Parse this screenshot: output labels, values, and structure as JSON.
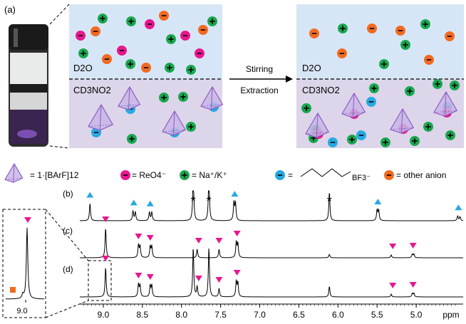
{
  "panel_labels": {
    "a": "(a)",
    "b": "(b)",
    "c": "(c)",
    "d": "(d)"
  },
  "boxes": {
    "left": {
      "top_label": "D2O",
      "bottom_label": "CD3NO2"
    },
    "right": {
      "top_label": "D2O",
      "bottom_label": "CD3NO2"
    }
  },
  "arrow": {
    "top_label": "Stirring",
    "bottom_label": "Extraction"
  },
  "legend": {
    "cage": "= 1·[BArF]12",
    "rheo4": "= ReO4⁻",
    "cation": "= Na⁺/K⁺",
    "borate_eq": "=",
    "borate": "BF3⁻",
    "other": "= other anion"
  },
  "colors": {
    "top_phase": "#d7e6f6",
    "bottom_phase": "#ddd5ea",
    "rheo4": "#e8178f",
    "cation": "#1aa750",
    "borate": "#27a9e1",
    "other": "#f26a21",
    "cage": "#8a5cc4"
  },
  "chart_data": {
    "type": "line",
    "title": "",
    "xlabel": "ppm",
    "ylabel": "",
    "xlim": [
      9.3,
      4.4
    ],
    "ticks": [
      9.0,
      8.5,
      8.0,
      7.5,
      7.0,
      6.5,
      6.0,
      5.5,
      5.0
    ],
    "tick_labels": [
      "9.0",
      "8.5",
      "8.0",
      "7.5",
      "7.0",
      "6.5",
      "6.0",
      "5.5",
      "5.0"
    ],
    "grid": false,
    "series": [
      {
        "name": "(b)",
        "peaks": [
          {
            "x": 9.17,
            "h": 0.36
          },
          {
            "x": 8.62,
            "h": 0.2
          },
          {
            "x": 8.59,
            "h": 0.18
          },
          {
            "x": 8.41,
            "h": 0.18
          },
          {
            "x": 8.38,
            "h": 0.18
          },
          {
            "x": 7.85,
            "h": 1.0
          },
          {
            "x": 7.65,
            "h": 0.98
          },
          {
            "x": 7.33,
            "h": 0.38
          },
          {
            "x": 7.31,
            "h": 0.36
          },
          {
            "x": 6.11,
            "h": 0.6
          },
          {
            "x": 5.5,
            "h": 0.22
          },
          {
            "x": 5.48,
            "h": 0.22
          },
          {
            "x": 4.47,
            "h": 0.1
          },
          {
            "x": 4.44,
            "h": 0.08
          }
        ],
        "markers": [
          {
            "x": 9.17,
            "shape": "triangle-up"
          },
          {
            "x": 8.61,
            "shape": "triangle-up"
          },
          {
            "x": 8.4,
            "shape": "triangle-up"
          },
          {
            "x": 7.32,
            "shape": "triangle-up"
          },
          {
            "x": 5.49,
            "shape": "triangle-up"
          },
          {
            "x": 4.46,
            "shape": "triangle-up"
          }
        ],
        "stars": [
          7.85,
          7.65,
          6.11
        ]
      },
      {
        "name": "(c)",
        "peaks": [
          {
            "x": 8.97,
            "h": 0.42
          },
          {
            "x": 8.55,
            "h": 0.18
          },
          {
            "x": 8.53,
            "h": 0.16
          },
          {
            "x": 8.4,
            "h": 0.16
          },
          {
            "x": 8.38,
            "h": 0.16
          },
          {
            "x": 7.8,
            "h": 0.12
          },
          {
            "x": 7.52,
            "h": 0.12
          },
          {
            "x": 7.3,
            "h": 0.22
          },
          {
            "x": 7.28,
            "h": 0.2
          },
          {
            "x": 6.11,
            "h": 0.05
          },
          {
            "x": 5.32,
            "h": 0.04
          },
          {
            "x": 5.05,
            "h": 0.05
          },
          {
            "x": 5.03,
            "h": 0.05
          }
        ],
        "markers": [
          {
            "x": 8.97,
            "shape": "triangle-down"
          },
          {
            "x": 8.55,
            "shape": "triangle-down"
          },
          {
            "x": 8.4,
            "shape": "triangle-down"
          },
          {
            "x": 7.78,
            "shape": "triangle-down"
          },
          {
            "x": 7.52,
            "shape": "triangle-down"
          },
          {
            "x": 7.29,
            "shape": "triangle-down"
          },
          {
            "x": 5.3,
            "shape": "triangle-down"
          },
          {
            "x": 5.04,
            "shape": "triangle-down"
          }
        ]
      },
      {
        "name": "(d)",
        "peaks": [
          {
            "x": 8.97,
            "h": 0.42
          },
          {
            "x": 8.55,
            "h": 0.18
          },
          {
            "x": 8.53,
            "h": 0.16
          },
          {
            "x": 8.4,
            "h": 0.16
          },
          {
            "x": 8.38,
            "h": 0.16
          },
          {
            "x": 7.85,
            "h": 0.7
          },
          {
            "x": 7.8,
            "h": 0.14
          },
          {
            "x": 7.65,
            "h": 0.7
          },
          {
            "x": 7.52,
            "h": 0.12
          },
          {
            "x": 7.3,
            "h": 0.22
          },
          {
            "x": 7.28,
            "h": 0.2
          },
          {
            "x": 6.11,
            "h": 0.15
          },
          {
            "x": 5.32,
            "h": 0.04
          },
          {
            "x": 5.05,
            "h": 0.05
          },
          {
            "x": 5.03,
            "h": 0.05
          }
        ],
        "markers": [
          {
            "x": 8.97,
            "shape": "triangle-down"
          },
          {
            "x": 8.55,
            "shape": "triangle-down"
          },
          {
            "x": 8.4,
            "shape": "triangle-down"
          },
          {
            "x": 7.78,
            "shape": "triangle-down"
          },
          {
            "x": 7.52,
            "shape": "triangle-down"
          },
          {
            "x": 7.29,
            "shape": "triangle-down"
          },
          {
            "x": 5.3,
            "shape": "triangle-down"
          },
          {
            "x": 5.04,
            "shape": "triangle-down"
          }
        ]
      }
    ],
    "inset": {
      "tick_label": "9.0",
      "markers": [
        "triangle-down",
        "square"
      ]
    }
  }
}
